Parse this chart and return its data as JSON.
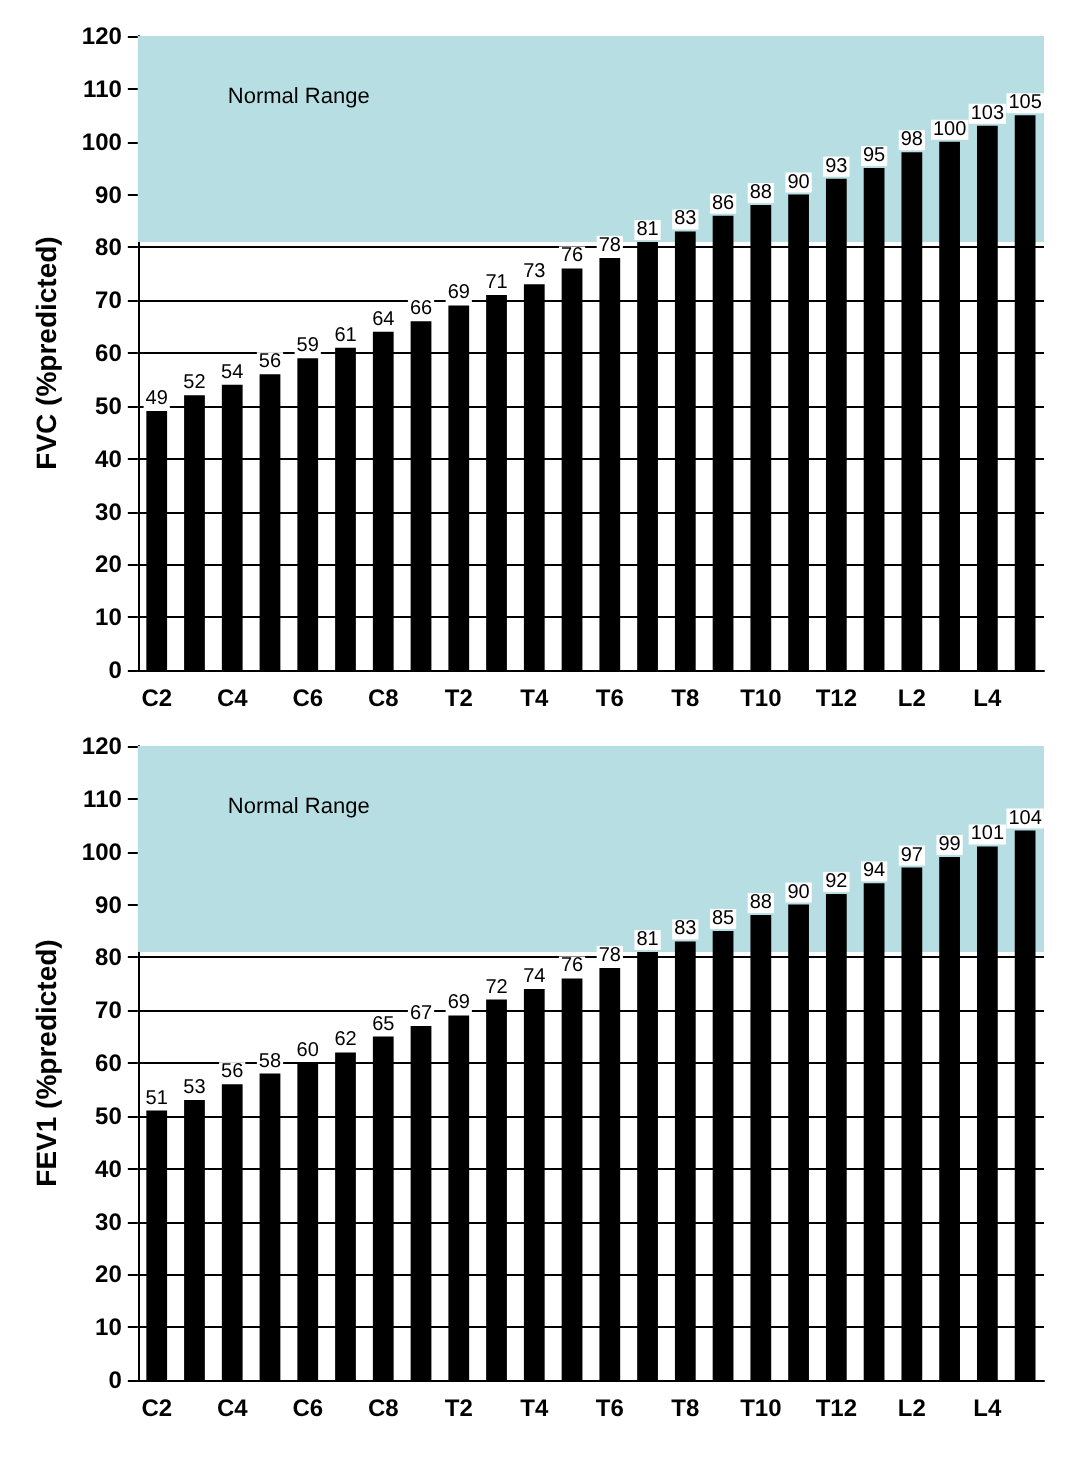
{
  "chart_data": [
    {
      "type": "bar",
      "ylabel": "FVC (%predicted)",
      "categories": [
        "C2",
        null,
        "C4",
        null,
        "C6",
        null,
        "C8",
        null,
        "T2",
        null,
        "T4",
        null,
        "T6",
        null,
        "T8",
        null,
        "T10",
        null,
        "T12",
        null,
        "L2",
        null,
        "L4",
        null
      ],
      "values": [
        49,
        52,
        54,
        56,
        59,
        61,
        64,
        66,
        69,
        71,
        73,
        76,
        78,
        81,
        83,
        86,
        88,
        90,
        93,
        95,
        98,
        100,
        103,
        105
      ],
      "color": "#000000",
      "data_labels": true,
      "grid": "y",
      "ylim": [
        0,
        120
      ],
      "yticks": [
        0,
        10,
        20,
        30,
        40,
        50,
        60,
        70,
        80,
        90,
        100,
        110,
        120
      ],
      "bands": [
        {
          "axis": "y",
          "from": 81,
          "to": 120,
          "label": "Normal Range",
          "color": "#b7dfe3"
        }
      ]
    },
    {
      "type": "bar",
      "ylabel": "FEV1 (%predicted)",
      "categories": [
        "C2",
        null,
        "C4",
        null,
        "C6",
        null,
        "C8",
        null,
        "T2",
        null,
        "T4",
        null,
        "T6",
        null,
        "T8",
        null,
        "T10",
        null,
        "T12",
        null,
        "L2",
        null,
        "L4",
        null
      ],
      "values": [
        51,
        53,
        56,
        58,
        60,
        62,
        65,
        67,
        69,
        72,
        74,
        76,
        78,
        81,
        83,
        85,
        88,
        90,
        92,
        94,
        97,
        99,
        101,
        104
      ],
      "color": "#000000",
      "data_labels": true,
      "grid": "y",
      "ylim": [
        0,
        120
      ],
      "yticks": [
        0,
        10,
        20,
        30,
        40,
        50,
        60,
        70,
        80,
        90,
        100,
        110,
        120
      ],
      "bands": [
        {
          "axis": "y",
          "from": 81,
          "to": 120,
          "label": "Normal Range",
          "color": "#b7dfe3"
        }
      ]
    }
  ]
}
